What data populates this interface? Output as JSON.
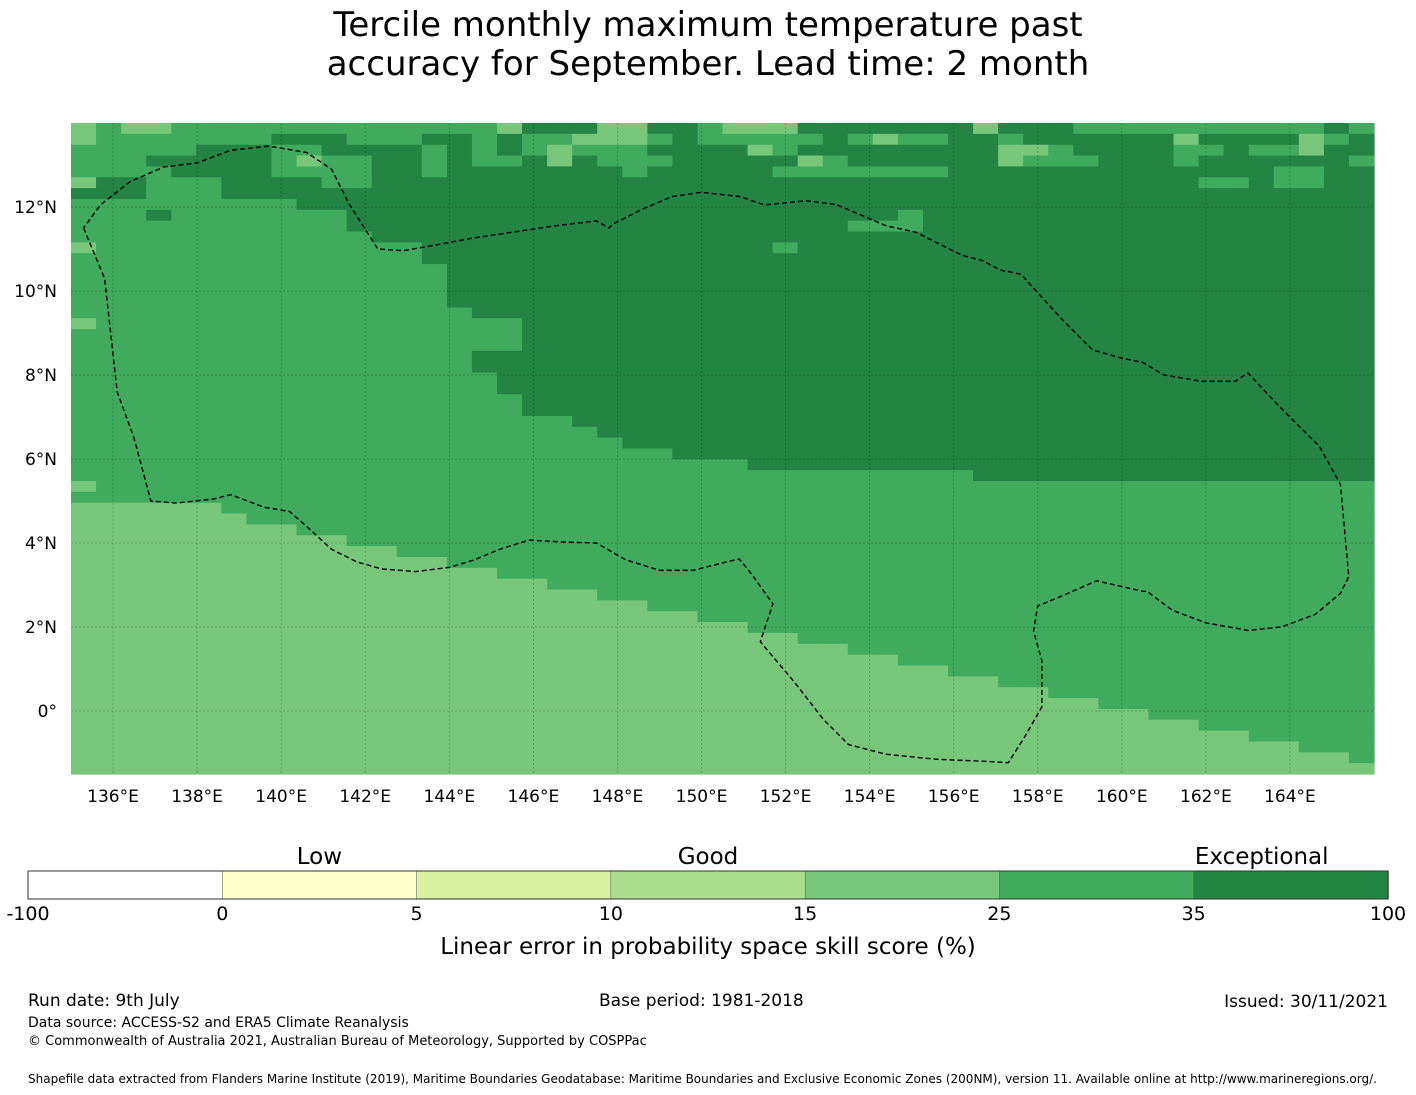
{
  "title": {
    "line1": "Tercile monthly maximum temperature past",
    "line2": "accuracy for September. Lead time: 2 month"
  },
  "map": {
    "lon_range": [
      135,
      166
    ],
    "lat_range": [
      -1.5,
      14
    ],
    "lon_ticks": [
      "136°E",
      "138°E",
      "140°E",
      "142°E",
      "144°E",
      "146°E",
      "148°E",
      "150°E",
      "152°E",
      "154°E",
      "156°E",
      "158°E",
      "160°E",
      "162°E",
      "164°E"
    ],
    "lat_ticks": [
      "12°N",
      "10°N",
      "8°N",
      "6°N",
      "4°N",
      "2°N",
      "0°"
    ],
    "gridlines": true,
    "grid_resolution_deg": 0.833,
    "boundary": "EEZ dashed outline",
    "eez_outline": [
      [
        135.3,
        11.5
      ],
      [
        135.8,
        10.3
      ],
      [
        136.1,
        7.6
      ],
      [
        136.5,
        6.5
      ],
      [
        136.9,
        5
      ],
      [
        137.5,
        4.95
      ],
      [
        138.4,
        5.05
      ],
      [
        138.8,
        5.15
      ],
      [
        139.6,
        4.85
      ],
      [
        140.2,
        4.75
      ],
      [
        140.6,
        4.4
      ],
      [
        141.2,
        3.85
      ],
      [
        141.8,
        3.55
      ],
      [
        142.4,
        3.38
      ],
      [
        143.2,
        3.32
      ],
      [
        144,
        3.42
      ],
      [
        144.6,
        3.6
      ],
      [
        145.2,
        3.85
      ],
      [
        145.9,
        4.07
      ],
      [
        146.8,
        4.02
      ],
      [
        147.5,
        4
      ],
      [
        148.2,
        3.6
      ],
      [
        149,
        3.35
      ],
      [
        149.8,
        3.35
      ],
      [
        150.6,
        3.55
      ],
      [
        150.9,
        3.62
      ],
      [
        151.2,
        3.25
      ],
      [
        151.7,
        2.55
      ],
      [
        151.5,
        1.95
      ],
      [
        151.4,
        1.65
      ],
      [
        152.2,
        0.7
      ],
      [
        152.9,
        -0.2
      ],
      [
        153.5,
        -0.8
      ],
      [
        154.4,
        -1.03
      ],
      [
        155.6,
        -1.15
      ],
      [
        156.8,
        -1.2
      ],
      [
        157.3,
        -1.23
      ],
      [
        157.7,
        -0.6
      ],
      [
        158.1,
        0.1
      ],
      [
        158.1,
        1.2
      ],
      [
        157.9,
        1.9
      ],
      [
        158,
        2.5
      ],
      [
        158.6,
        2.75
      ],
      [
        159.4,
        3.1
      ],
      [
        160.5,
        2.85
      ],
      [
        160.6,
        2.85
      ],
      [
        161.2,
        2.4
      ],
      [
        162,
        2.1
      ],
      [
        163,
        1.92
      ],
      [
        163.8,
        2.0
      ],
      [
        164.6,
        2.3
      ],
      [
        165.2,
        2.8
      ],
      [
        165.4,
        3.2
      ],
      [
        165.2,
        5.4
      ],
      [
        164.7,
        6.3
      ],
      [
        163.7,
        7.3
      ],
      [
        163,
        8.05
      ],
      [
        162.7,
        7.85
      ],
      [
        161.9,
        7.85
      ],
      [
        161,
        8
      ],
      [
        160.5,
        8.3
      ],
      [
        160,
        8.4
      ],
      [
        159.3,
        8.6
      ],
      [
        158.6,
        9.3
      ],
      [
        157.6,
        10.4
      ],
      [
        157.4,
        10.44
      ],
      [
        157.1,
        10.5
      ],
      [
        156.7,
        10.72
      ],
      [
        156.2,
        10.85
      ],
      [
        155.6,
        11.15
      ],
      [
        155.1,
        11.4
      ],
      [
        154.4,
        11.55
      ],
      [
        153.7,
        11.85
      ],
      [
        153.2,
        12.06
      ],
      [
        152.5,
        12.15
      ],
      [
        151.5,
        12.05
      ],
      [
        150.9,
        12.25
      ],
      [
        150,
        12.35
      ],
      [
        149.3,
        12.25
      ],
      [
        148.6,
        11.95
      ],
      [
        147.9,
        11.6
      ],
      [
        147.8,
        11.5
      ],
      [
        147.5,
        11.67
      ],
      [
        146.5,
        11.55
      ],
      [
        145.5,
        11.4
      ],
      [
        144.5,
        11.25
      ],
      [
        143.6,
        11.08
      ],
      [
        142.9,
        10.96
      ],
      [
        142.3,
        11.0
      ],
      [
        141.6,
        12.1
      ],
      [
        141.2,
        12.9
      ],
      [
        140.6,
        13.3
      ],
      [
        139.7,
        13.45
      ],
      [
        138.8,
        13.35
      ],
      [
        138,
        13.05
      ],
      [
        137.2,
        12.95
      ],
      [
        136.4,
        12.6
      ],
      [
        135.7,
        12.05
      ],
      [
        135.3,
        11.5
      ]
    ],
    "skill_bins_per_row": [
      "SMSSMMMMMMMMMMMMMSDDDSSDDMSSSDDDDDDDSDDDMMMMMMMMMMDM",
      "SMMMMMMMDDDMMMDDMDMMSSSMDMMMMMDMSMMDDMDDDDDDSDDDDSMD",
      "MMMMMDDDMMDDDDMDMDMSMMMDDDDSMDDDDDDDDSSMDDDDMMDMMSDD",
      "MMMDDDDDMSMMDDMDMMDSDMMMDDDDDSMDDDDDDSMMMDDDMDDDDDDM",
      "MMMMDDDDMMMMDDMDDDDDDDMDDDDDMMMMMMMDDDDDDDDDDDDDMMDD",
      "SDDMMMDDDDMMDDDDDDDDDDDDDDDDDDDDDDDDDDDDDDDDDMMDMMDD",
      "DDDMMMDDDDDDDDDDDDDDDDDDDDDDDDDDDDDDDDDDDDDDDDDDDDDD",
      "MMMMMMMMMDDDDDDDDDDDDDDDDDDDDDDDDDDDDDDDDDDDDDDDDDDD",
      "MMMDMMMMMMMDDDDDDDDDDDDDDDDDDDDDDMDDDDDDDDDDDDDDDDDD",
      "MMMMMMMMMMMDDDDDDDDDDDDDDDDDDDDMMMDDDDDDDDDDDDDDDDDD",
      "MMMMMMMMMMMMDDDDDDDDDDDDDDDDDDDDDDDDDDDDDDDDDDDDDDDD",
      "SMMMMMMMMMMMMMDDDDDDDDDDDDDDMDDDDDDDDDDDDDDDDDDDDDDD",
      "MMMMMMMMMMMMMMDDDDDDDDDDDDDDDDDDDDDDDDDDDDDDDDDDDDDD",
      "MMMMMMMMMMMMMMMDDDDDDDDDDDDDDDDDDDDDDDDDDDDDDDDDDDDD",
      "MMMMMMMMMMMMMMMDDDDDDDDDDDDDDDDDDDDDDDDDDDDDDDDDDDDD",
      "MMMMMMMMMMMMMMMDDDDDDDDDDDDDDDDDDDDDDDDDDDDDDDDDDDDD",
      "MMMMMMMMMMMMMMMDDDDDDDDDDDDDDDDDDDDDDDDDDDDDDDDDDDDD",
      "MMMMMMMMMMMMMMMMDDDDDDDDDDDDDDDDDDDDDDDDDDDDDDDDDDDD",
      "SMMMMMMMMMMMMMMMMMDDDDDDDDDDDDDDDDDDDDDDDDDDDDDDDDDD",
      "MMMMMMMMMMMMMMMMMMDDDDDDDDDDDDDDDDDDDDDDDDDDDDDDDDDD",
      "MMMMMMMMMMMMMMMMMMDDDDDDDDDDDDDDDDDDDDDDDDDDDDDDDDDD",
      "MMMMMMMMMMMMMMMMDDDDDDDDDDDDDDDDDDDDDDDDDDDDDDDDDDDD",
      "MMMMMMMMMMMMMMMMDDDDDDDDDDDDDDDDDDDDDDDDDDDDDDDDDDDD",
      "MMMMMMMMMMMMMMMMMDDDDDDDDDDDDDDDDDDDDDDDDDDDDDDDDDDD",
      "MMMMMMMMMMMMMMMMMDDDDDDDDDDDDDDDDDDDDDDDDDDDDDDDDDDD",
      "MMMMMMMMMMMMMMMMMMDDDDDDDDDDDDDDDDDDDDDDDDDDDDDDDDDD",
      "MMMMMMMMMMMMMMMMMMDDDDDDDDDDDDDDDDDDDDDDDDDDDDDDDDDD",
      "MMMMMMMMMMMMMMMMMMMMDDDDDDDDDDDDDDDDDDDDDDDDDDDDDDDD",
      "MMMMMMMMMMMMMMMMMMMMMDDDDDDDDDDDDDDDDDDDDDDDDDDDDDDD",
      "MMMMMMMMMMMMMMMMMMMMMMDDDDDDDDDDDDDDDDDDDDDDDDDDDDDD",
      "MMMMMMMMMMMMMMMMMMMMMMMMDDDDDDDDDDDDDDDDDDDDDDDDDDDD",
      "MMMMMMMMMMMMMMMMMMMMMMMMMMMDDDDDDDDDDDDDDDDDDDDDDDDD",
      "MMMMMMMMMMMMMMMMMMMMMMMMMMMMMMMMMMMMDDDDDDDDDDDDDDDD",
      "SMMMMMMMMMMMMMMMMMMMMMMMMMMMMMMMMMMMMMMMMMMMMMMMMMMM",
      "MMMMMMMMMMMMMMMMMMMMMMMMMMMMMMMMMMMMMMMMMMMMMMMMMMMM",
      "SSSSSSMMMMMMMMMMMMMMMMMMMMMMMMMMMMMMMMMMMMMMMMMMMMMM",
      "SSSSSSSMMMMMMMMMMMMMMMMMMMMMMMMMMMMMMMMMMMMMMMMMMMMM",
      "SSSSSSSSSMMMMMMMMMMMMMMMMMMMMMMMMMMMMMMMMMMMMMMMMMMM",
      "SSSSSSSSSSSMMMMMMMMMMMMMMMMMMMMMMMMMMMMMMMMMMMMMMMMM",
      "SSSSSSSSSSSSSMMMMMMMMMMMMMMMMMMMMMMMMMMMMMMMMMMMMMMM",
      "SSSSSSSSSSSSSSSMMMMMMMMMMMMMMMMMMMMMMMMMMMMMMMMMMMMM",
      "SSSSSSSSSSSSSSSSSMMMMMMMMMMMMMMMMMMMMMMMMMMMMMMMMMMM",
      "SSSSSSSSSSSSSSSSSSSMMMMMMMMMMMMMMMMMMMMMMMMMMMMMMMMM",
      "SSSSSSSSSSSSSSSSSSSSSMMMMMMMMMMMMMMMMMMMMMMMMMMMMMMM",
      "SSSSSSSSSSSSSSSSSSSSSSSMMMMMMMMMMMMMMMMMMMMMMMMMMMMM",
      "SSSSSSSSSSSSSSSSSSSSSSSSSMMMMMMMMMMMMMMMMMMMMMMMMMMM",
      "SSSSSSSSSSSSSSSSSSSSSSSSSSSMMMMMMMMMMMMMMMMMMMMMMMMM",
      "SSSSSSSSSSSSSSSSSSSSSSSSSSSSSMMMMMMMMMMMMMMMMMMMMMMM",
      "SSSSSSSSSSSSSSSSSSSSSSSSSSSSSSSMMMMMMMMMMMMMMMMMMMMM",
      "SSSSSSSSSSSSSSSSSSSSSSSSSSSSSSSSSMMMMMMMMMMMMMMMMMMM",
      "SSSSSSSSSSSSSSSSSSSSSSSSSSSSSSSSSSSMMMMMMMMMMMMMMMMM",
      "SSSSSSSSSSSSSSSSSSSSSSSSSSSSSSSSSSSSSMMMMMMMMMMMMMMM",
      "SSSSSSSSSSSSSSSSSSSSSSSSSSSSSSSSSSSSSSSMMMMMMMMMMMMM",
      "SSSSSSSSSSSSSSSSSSSSSSSSSSSSSSSSSSSSSSSSSMMMMMMMMMMM",
      "SSSSSSSSSSSSSSSSSSSSSSSSSSSSSSSSSSSSSSSSSSSMMMMMMMMM",
      "SSSSSSSSSSSSSSSSSSSSSSSSSSSSSSSSSSSSSSSSSSSSSMMMMMMM",
      "SSSSSSSSSSSSSSSSSSSSSSSSSSSSSSSSSSSSSSSSSSSSSSSMMMMM",
      "SSSSSSSSSSSSSSSSSSSSSSSSSSSSSSSSSSSSSSSSSSSSSSSSSMMM",
      "SSSSSSSSSSSSSSSSSSSSSSSSSSSSSSSSSSSSSSSSSSSSSSSSSSSM",
      "SSSSSSSSSSSSSSSSSSSSSSSSSSSSSSSSSSSSSSSSSSSSSSSSSSSS"
    ],
    "skill_bin_codes": {
      "D": 6,
      "M": 5,
      "S": 4
    }
  },
  "colorbar": {
    "categories": [
      "Low",
      "Good",
      "Exceptional"
    ],
    "ticks": [
      "-100",
      "0",
      "5",
      "10",
      "15",
      "25",
      "35",
      "100"
    ],
    "colors": [
      "#ffffff",
      "#ffffcc",
      "#d9f0a3",
      "#addd8e",
      "#78c679",
      "#41ab5d",
      "#238443"
    ],
    "label": "Linear error in probability space skill score (%)"
  },
  "footer": {
    "run_date": "Run date: 9th July",
    "base_period": "Base period: 1981-2018",
    "issued": "Issued: 30/11/2021",
    "data_source": "Data source: ACCESS-S2 and ERA5 Climate Reanalysis",
    "copyright": "© Commonwealth of Australia 2021, Australian Bureau of Meteorology, Supported by COSPPac",
    "shapefile": "Shapefile data extracted from Flanders Marine Institute (2019), Maritime Boundaries Geodatabase: Maritime Boundaries and Exclusive Economic Zones (200NM), version 11. Available online at http://www.marineregions.org/."
  }
}
